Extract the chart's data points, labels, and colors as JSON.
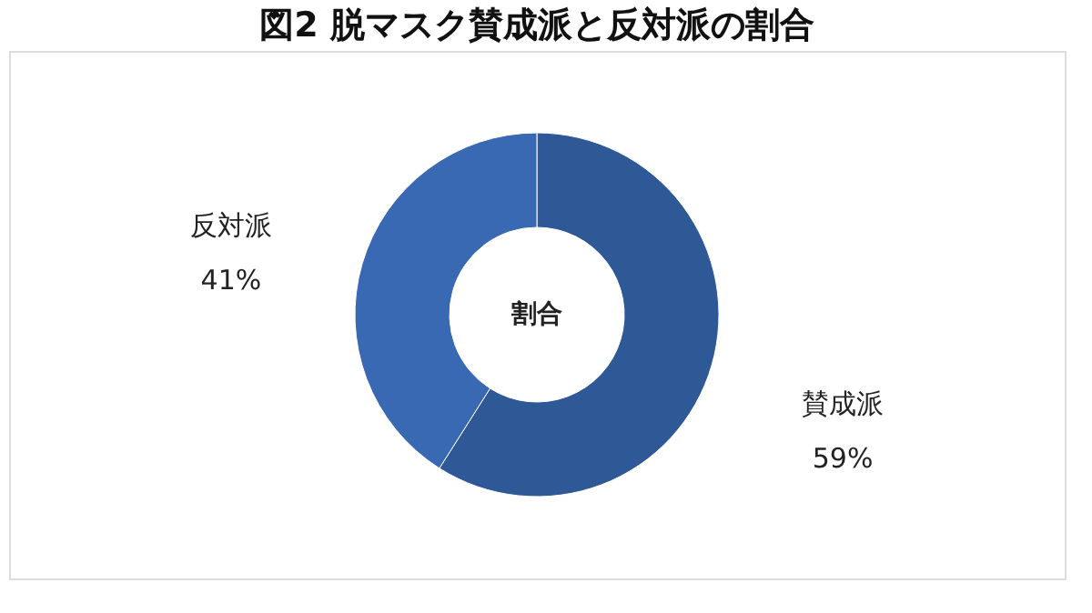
{
  "chart_data": {
    "type": "donut",
    "title": "図2 脱マスク賛成派と反対派の割合",
    "categories": [
      "賛成派",
      "反対派"
    ],
    "values": [
      59,
      41
    ],
    "colors": [
      "#2f5897",
      "#3a69b3"
    ],
    "value_labels": [
      "59%",
      "41%"
    ],
    "annotations": [
      "割合"
    ],
    "legend": false
  }
}
